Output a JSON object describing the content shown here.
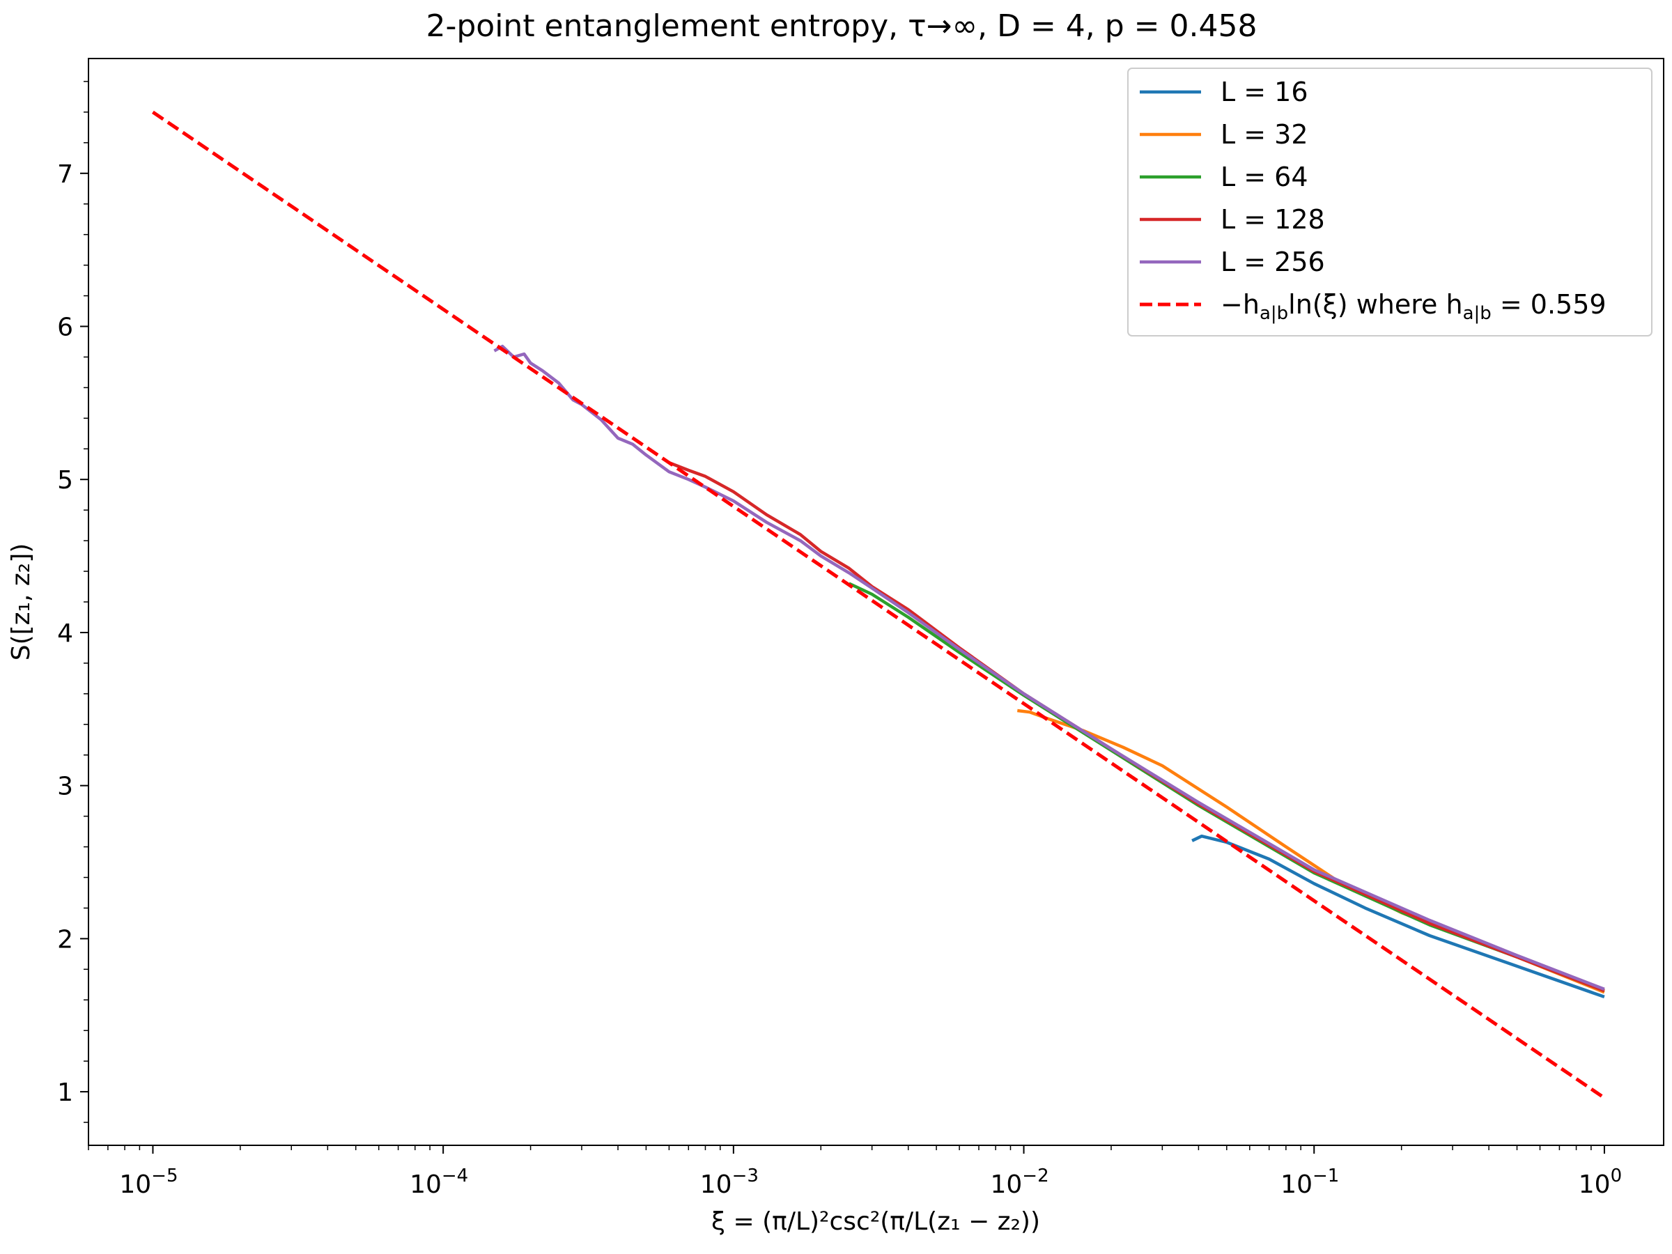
{
  "chart_data": {
    "type": "line",
    "title": "2-point entanglement entropy, τ→∞, D = 4, p = 0.458",
    "xlabel": "ξ = (π/L)²csc²(π/L(z₁ − z₂))",
    "ylabel": "S([z₁, z₂])",
    "x_scale": "log",
    "xlim": [
      6e-06,
      1.6
    ],
    "ylim": [
      0.65,
      7.75
    ],
    "grid": false,
    "legend_position": "upper right",
    "x_ticks": [
      {
        "value": 1e-05,
        "base": "10",
        "exp": "−5"
      },
      {
        "value": 0.0001,
        "base": "10",
        "exp": "−4"
      },
      {
        "value": 0.001,
        "base": "10",
        "exp": "−3"
      },
      {
        "value": 0.01,
        "base": "10",
        "exp": "−2"
      },
      {
        "value": 0.1,
        "base": "10",
        "exp": "−1"
      },
      {
        "value": 1,
        "base": "10",
        "exp": "0"
      }
    ],
    "y_ticks": [
      {
        "value": 1,
        "label": "1"
      },
      {
        "value": 2,
        "label": "2"
      },
      {
        "value": 3,
        "label": "3"
      },
      {
        "value": 4,
        "label": "4"
      },
      {
        "value": 5,
        "label": "5"
      },
      {
        "value": 6,
        "label": "6"
      },
      {
        "value": 7,
        "label": "7"
      }
    ],
    "series": [
      {
        "name": "L = 16",
        "color": "#1f77b4",
        "dash": false,
        "x": [
          0.038,
          0.041,
          0.05,
          0.07,
          0.1,
          0.15,
          0.25,
          0.5,
          1.0
        ],
        "y": [
          2.64,
          2.67,
          2.63,
          2.52,
          2.36,
          2.2,
          2.02,
          1.82,
          1.62
        ]
      },
      {
        "name": "L = 32",
        "color": "#ff7f0e",
        "dash": false,
        "x": [
          0.0095,
          0.0105,
          0.012,
          0.016,
          0.022,
          0.03,
          0.05,
          0.08,
          0.12,
          0.2,
          0.3,
          0.5,
          1.0
        ],
        "y": [
          3.49,
          3.48,
          3.44,
          3.36,
          3.25,
          3.13,
          2.86,
          2.6,
          2.38,
          2.17,
          2.04,
          1.88,
          1.65
        ]
      },
      {
        "name": "L = 64",
        "color": "#2ca02c",
        "dash": false,
        "x": [
          0.0025,
          0.003,
          0.004,
          0.006,
          0.01,
          0.02,
          0.04,
          0.1,
          0.25,
          0.5,
          1.0
        ],
        "y": [
          4.32,
          4.25,
          4.1,
          3.87,
          3.59,
          3.23,
          2.87,
          2.43,
          2.09,
          1.88,
          1.66
        ]
      },
      {
        "name": "L = 128",
        "color": "#d62728",
        "dash": false,
        "x": [
          0.0006,
          0.0007,
          0.0008,
          0.001,
          0.0013,
          0.0017,
          0.002,
          0.0025,
          0.003,
          0.004,
          0.006,
          0.01,
          0.02,
          0.04,
          0.1,
          0.25,
          0.5,
          1.0
        ],
        "y": [
          5.11,
          5.06,
          5.02,
          4.92,
          4.77,
          4.64,
          4.53,
          4.42,
          4.3,
          4.15,
          3.9,
          3.6,
          3.24,
          2.88,
          2.44,
          2.1,
          1.88,
          1.66
        ]
      },
      {
        "name": "L = 256",
        "color": "#9467bd",
        "dash": false,
        "x": [
          0.00015,
          0.00016,
          0.000175,
          0.00019,
          0.0002,
          0.00022,
          0.00025,
          0.00028,
          0.0003,
          0.00035,
          0.0004,
          0.00045,
          0.0005,
          0.0006,
          0.0007,
          0.0008,
          0.001,
          0.0013,
          0.0017,
          0.002,
          0.0025,
          0.003,
          0.004,
          0.006,
          0.01,
          0.02,
          0.04,
          0.1,
          0.25,
          0.5,
          1.0
        ],
        "y": [
          5.84,
          5.87,
          5.8,
          5.82,
          5.76,
          5.71,
          5.63,
          5.52,
          5.49,
          5.39,
          5.27,
          5.23,
          5.16,
          5.05,
          5.0,
          4.95,
          4.86,
          4.72,
          4.6,
          4.5,
          4.39,
          4.29,
          4.13,
          3.89,
          3.6,
          3.24,
          2.89,
          2.45,
          2.12,
          1.89,
          1.67
        ]
      },
      {
        "name": "−h_{a|b}ln(ξ) where h_{a|b} = 0.559",
        "color": "#ff0000",
        "dash": true,
        "x": [
          1e-05,
          1.0
        ],
        "y": [
          7.4,
          0.96
        ]
      }
    ]
  }
}
